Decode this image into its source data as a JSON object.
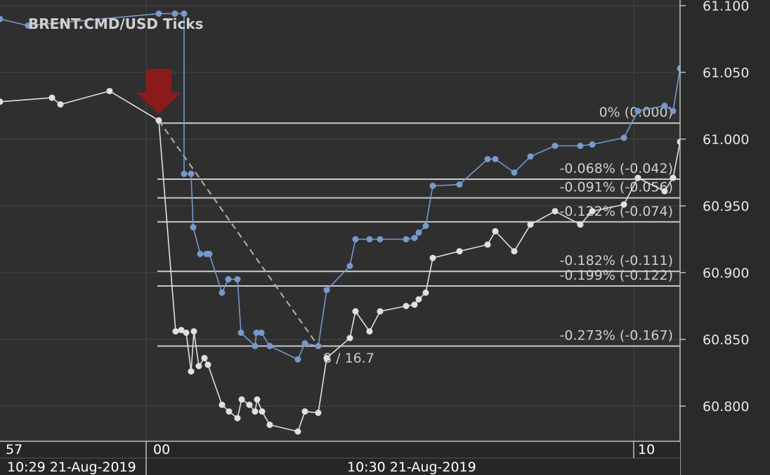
{
  "chart_data": {
    "type": "line",
    "title": "BRENT.CMD/USD  Ticks",
    "ylim": [
      60.78,
      61.1
    ],
    "y_ticks": [
      {
        "value": 61.1,
        "label": "61.100"
      },
      {
        "value": 61.05,
        "label": "61.050"
      },
      {
        "value": 61.0,
        "label": "61.000"
      },
      {
        "value": 60.95,
        "label": "60.950"
      },
      {
        "value": 60.9,
        "label": "60.900"
      },
      {
        "value": 60.85,
        "label": "60.850"
      },
      {
        "value": 60.8,
        "label": "60.800"
      }
    ],
    "x_axis": {
      "minor_labels": [
        "57",
        "00",
        "10"
      ],
      "major_labels": [
        "10:29 21-Aug-2019",
        "10:30 21-Aug-2019"
      ]
    },
    "grid": true,
    "colors": {
      "background": "#2f2f2f",
      "grid": "#444444",
      "ask_series": "#7799cc",
      "bid_series": "#e0e0e0",
      "fib_lines": "#c8c8c8",
      "arrow": "#8b1a1a",
      "axis_panel": "#262626"
    },
    "series": [
      {
        "color": "#7799cc",
        "points": [
          [
            0,
            61.09
          ],
          [
            40,
            61.085
          ],
          [
            226,
            61.094
          ],
          [
            249,
            61.094
          ],
          [
            262,
            61.094
          ],
          [
            262,
            60.974
          ],
          [
            272,
            60.974
          ],
          [
            275,
            60.934
          ],
          [
            285,
            60.914
          ],
          [
            294,
            60.914
          ],
          [
            298,
            60.914
          ],
          [
            316,
            60.885
          ],
          [
            325,
            60.895
          ],
          [
            338,
            60.895
          ],
          [
            343,
            60.855
          ],
          [
            363,
            60.845
          ],
          [
            365,
            60.855
          ],
          [
            372,
            60.855
          ],
          [
            384,
            60.845
          ],
          [
            424,
            60.835
          ],
          [
            434,
            60.847
          ],
          [
            453,
            60.845
          ],
          [
            465,
            60.887
          ],
          [
            498,
            60.905
          ],
          [
            506,
            60.925
          ],
          [
            526,
            60.925
          ],
          [
            541,
            60.925
          ],
          [
            578,
            60.925
          ],
          [
            590,
            60.926
          ],
          [
            596,
            60.93
          ],
          [
            606,
            60.935
          ],
          [
            616,
            60.965
          ],
          [
            654,
            60.966
          ],
          [
            694,
            60.985
          ],
          [
            705,
            60.985
          ],
          [
            732,
            60.975
          ],
          [
            755,
            60.987
          ],
          [
            790,
            60.995
          ],
          [
            826,
            60.995
          ],
          [
            843,
            60.996
          ],
          [
            888,
            61.001
          ],
          [
            908,
            61.021
          ],
          [
            946,
            61.025
          ],
          [
            958,
            61.021
          ],
          [
            968,
            61.053
          ]
        ]
      },
      {
        "color": "#e0e0e0",
        "points": [
          [
            0,
            61.028
          ],
          [
            74,
            61.031
          ],
          [
            86,
            61.026
          ],
          [
            156,
            61.036
          ],
          [
            226,
            61.014
          ],
          [
            250,
            60.856
          ],
          [
            258,
            60.857
          ],
          [
            265,
            60.855
          ],
          [
            272,
            60.826
          ],
          [
            276,
            60.856
          ],
          [
            283,
            60.83
          ],
          [
            291,
            60.836
          ],
          [
            296,
            60.831
          ],
          [
            316,
            60.801
          ],
          [
            326,
            60.796
          ],
          [
            338,
            60.791
          ],
          [
            344,
            60.805
          ],
          [
            355,
            60.801
          ],
          [
            363,
            60.796
          ],
          [
            366,
            60.805
          ],
          [
            373,
            60.796
          ],
          [
            384,
            60.786
          ],
          [
            424,
            60.781
          ],
          [
            434,
            60.796
          ],
          [
            453,
            60.795
          ],
          [
            465,
            60.836
          ],
          [
            498,
            60.851
          ],
          [
            506,
            60.871
          ],
          [
            526,
            60.856
          ],
          [
            541,
            60.871
          ],
          [
            578,
            60.875
          ],
          [
            590,
            60.876
          ],
          [
            596,
            60.88
          ],
          [
            606,
            60.885
          ],
          [
            616,
            60.911
          ],
          [
            654,
            60.916
          ],
          [
            694,
            60.921
          ],
          [
            705,
            60.931
          ],
          [
            732,
            60.916
          ],
          [
            755,
            60.936
          ],
          [
            790,
            60.946
          ],
          [
            826,
            60.936
          ],
          [
            843,
            60.946
          ],
          [
            888,
            60.951
          ],
          [
            908,
            60.971
          ],
          [
            946,
            60.961
          ],
          [
            958,
            60.971
          ],
          [
            968,
            60.998
          ]
        ]
      }
    ],
    "fibonacci": {
      "levels": [
        {
          "value": 61.012,
          "label": "0% (0.000)"
        },
        {
          "value": 60.97,
          "label": "-0.068% (-0.042)"
        },
        {
          "value": 60.956,
          "label": "-0.091% (-0.056)"
        },
        {
          "value": 60.938,
          "label": "-0.122% (-0.074)"
        },
        {
          "value": 60.901,
          "label": "-0.182% (-0.111)"
        },
        {
          "value": 60.89,
          "label": "-0.199% (-0.122)"
        },
        {
          "value": 60.845,
          "label": "-0.273% (-0.167)"
        }
      ],
      "trend_from": [
        226,
        61.014
      ],
      "trend_to": [
        453,
        60.845
      ],
      "annotation": "8 / 16.7"
    },
    "arrow": {
      "x": 226,
      "direction": "down"
    }
  }
}
